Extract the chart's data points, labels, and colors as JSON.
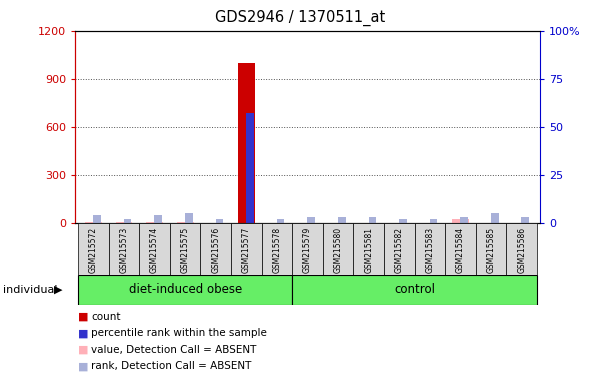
{
  "title": "GDS2946 / 1370511_at",
  "samples": [
    "GSM215572",
    "GSM215573",
    "GSM215574",
    "GSM215575",
    "GSM215576",
    "GSM215577",
    "GSM215578",
    "GSM215579",
    "GSM215580",
    "GSM215581",
    "GSM215582",
    "GSM215583",
    "GSM215584",
    "GSM215585",
    "GSM215586"
  ],
  "groups": [
    {
      "label": "diet-induced obese",
      "start": 0,
      "end": 7
    },
    {
      "label": "control",
      "start": 7,
      "end": 15
    }
  ],
  "count_values": [
    0,
    0,
    0,
    0,
    0,
    1000,
    0,
    0,
    0,
    0,
    0,
    0,
    0,
    0,
    0
  ],
  "rank_values": [
    0,
    0,
    0,
    0,
    0,
    57,
    0,
    0,
    0,
    0,
    0,
    0,
    0,
    0,
    0
  ],
  "absent_value_values": [
    2,
    3,
    5,
    4,
    0,
    0,
    0,
    0,
    0,
    0,
    0,
    0,
    25,
    0,
    0
  ],
  "absent_rank_values": [
    4,
    2,
    4,
    5,
    2,
    0,
    2,
    3,
    3,
    3,
    2,
    2,
    3,
    5,
    3
  ],
  "ylim_left": [
    0,
    1200
  ],
  "ylim_right": [
    0,
    100
  ],
  "left_ticks": [
    0,
    300,
    600,
    900,
    1200
  ],
  "right_ticks": [
    0,
    25,
    50,
    75,
    100
  ],
  "right_tick_labels": [
    "0",
    "25",
    "50",
    "75",
    "100%"
  ],
  "colors": {
    "count": "#cc0000",
    "rank": "#3333cc",
    "absent_value": "#ffb0b8",
    "absent_rank": "#a8b0d8",
    "grid": "#505050"
  },
  "group_color": "#66ee66"
}
